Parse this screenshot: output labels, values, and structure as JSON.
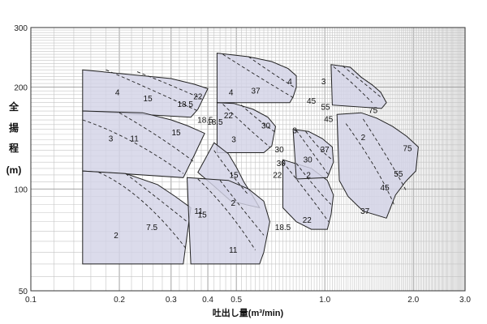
{
  "chart_data": {
    "type": "area",
    "title": "",
    "xlabel": "吐出し量(m³/min)",
    "ylabel_chars": [
      "全",
      "揚",
      "程",
      "(m)"
    ],
    "x_scale": "log",
    "y_scale": "log",
    "xlim": [
      0.1,
      3.0
    ],
    "ylim": [
      50,
      300
    ],
    "x_ticks": [
      {
        "value": 0.1,
        "label": "0.1"
      },
      {
        "value": 0.2,
        "label": "0.2"
      },
      {
        "value": 0.3,
        "label": "0.3"
      },
      {
        "value": 0.4,
        "label": "0.4"
      },
      {
        "value": 0.5,
        "label": "0.5"
      },
      {
        "value": 1.0,
        "label": "1.0"
      },
      {
        "value": 2.0,
        "label": "2.0"
      },
      {
        "value": 3.0,
        "label": "3.0"
      }
    ],
    "y_ticks": [
      {
        "value": 50,
        "label": "50"
      },
      {
        "value": 100,
        "label": "100"
      },
      {
        "value": 200,
        "label": "200"
      },
      {
        "value": 300,
        "label": "300"
      }
    ],
    "grid": true,
    "regions": [
      {
        "points": [
          [
            0.15,
            225
          ],
          [
            0.3,
            212
          ],
          [
            0.36,
            204
          ],
          [
            0.4,
            198
          ],
          [
            0.37,
            172
          ],
          [
            0.35,
            163
          ],
          [
            0.15,
            170
          ]
        ],
        "curves": [
          [
            [
              0.18,
              225
            ],
            [
              0.26,
              196
            ],
            [
              0.37,
              170
            ]
          ],
          [
            [
              0.23,
              222
            ],
            [
              0.3,
              203
            ],
            [
              0.38,
              185
            ]
          ]
        ],
        "labels": [
          {
            "text": "4",
            "x": 0.197,
            "y": 193
          },
          {
            "text": "15",
            "x": 0.25,
            "y": 185
          },
          {
            "text": "18.5",
            "x": 0.335,
            "y": 178
          },
          {
            "text": "22",
            "x": 0.37,
            "y": 188
          }
        ]
      },
      {
        "points": [
          [
            0.15,
            170
          ],
          [
            0.24,
            168
          ],
          [
            0.3,
            160
          ],
          [
            0.34,
            154
          ],
          [
            0.39,
            146
          ],
          [
            0.36,
            126
          ],
          [
            0.33,
            108
          ],
          [
            0.15,
            113
          ]
        ],
        "curves": [
          [
            [
              0.15,
              160
            ],
            [
              0.22,
              143
            ],
            [
              0.33,
              111
            ]
          ],
          [
            [
              0.2,
              168
            ],
            [
              0.28,
              142
            ],
            [
              0.36,
              120
            ]
          ]
        ],
        "labels": [
          {
            "text": "3",
            "x": 0.187,
            "y": 141
          },
          {
            "text": "11",
            "x": 0.225,
            "y": 141
          },
          {
            "text": "15",
            "x": 0.312,
            "y": 147
          },
          {
            "text": "18.5",
            "x": 0.392,
            "y": 160
          }
        ]
      },
      {
        "points": [
          [
            0.15,
            113
          ],
          [
            0.21,
            111
          ],
          [
            0.27,
            103
          ],
          [
            0.31,
            95
          ],
          [
            0.35,
            88
          ],
          [
            0.34,
            73
          ],
          [
            0.33,
            60
          ],
          [
            0.15,
            60
          ]
        ],
        "curves": [
          [
            [
              0.17,
              112
            ],
            [
              0.24,
              98
            ],
            [
              0.34,
              66
            ]
          ],
          [
            [
              0.21,
              111
            ],
            [
              0.27,
              94
            ],
            [
              0.34,
              80
            ]
          ]
        ],
        "labels": [
          {
            "text": "2",
            "x": 0.195,
            "y": 73
          },
          {
            "text": "7.5",
            "x": 0.258,
            "y": 77
          },
          {
            "text": "11",
            "x": 0.372,
            "y": 86
          }
        ]
      },
      {
        "points": [
          [
            0.43,
            252
          ],
          [
            0.55,
            246
          ],
          [
            0.66,
            238
          ],
          [
            0.75,
            227
          ],
          [
            0.8,
            216
          ],
          [
            0.8,
            200
          ],
          [
            0.78,
            187
          ],
          [
            0.76,
            180
          ],
          [
            0.43,
            180
          ]
        ],
        "curves": [
          [
            [
              0.45,
              250
            ],
            [
              0.59,
              215
            ],
            [
              0.79,
              185
            ]
          ],
          [
            [
              0.55,
              246
            ],
            [
              0.66,
              220
            ],
            [
              0.8,
              198
            ]
          ]
        ],
        "labels": [
          {
            "text": "4",
            "x": 0.48,
            "y": 193
          },
          {
            "text": "37",
            "x": 0.582,
            "y": 195
          },
          {
            "text": "4",
            "x": 0.76,
            "y": 208
          }
        ]
      },
      {
        "points": [
          [
            0.43,
            180
          ],
          [
            0.49,
            179
          ],
          [
            0.57,
            172
          ],
          [
            0.64,
            163
          ],
          [
            0.68,
            153
          ],
          [
            0.66,
            134
          ],
          [
            0.62,
            128
          ],
          [
            0.43,
            128
          ]
        ],
        "curves": [
          [
            [
              0.45,
              178
            ],
            [
              0.55,
              150
            ],
            [
              0.65,
              133
            ]
          ],
          [
            [
              0.52,
              177
            ],
            [
              0.59,
              160
            ],
            [
              0.68,
              147
            ]
          ]
        ],
        "labels": [
          {
            "text": "22",
            "x": 0.47,
            "y": 165
          },
          {
            "text": "30",
            "x": 0.63,
            "y": 154
          },
          {
            "text": "30",
            "x": 0.7,
            "y": 131
          }
        ]
      },
      {
        "points": [
          [
            0.42,
            137
          ],
          [
            0.47,
            127
          ],
          [
            0.5,
            116
          ],
          [
            0.53,
            105
          ],
          [
            0.57,
            95
          ],
          [
            0.6,
            88
          ],
          [
            0.48,
            92
          ],
          [
            0.42,
            102
          ],
          [
            0.37,
            112
          ]
        ],
        "curves": [
          [
            [
              0.42,
              130
            ],
            [
              0.48,
              110
            ],
            [
              0.55,
              96
            ]
          ]
        ],
        "labels": [
          {
            "text": "18.5",
            "x": 0.423,
            "y": 158
          },
          {
            "text": "3",
            "x": 0.49,
            "y": 140
          },
          {
            "text": "15",
            "x": 0.49,
            "y": 110
          }
        ]
      },
      {
        "points": [
          [
            0.34,
            108
          ],
          [
            0.47,
            106
          ],
          [
            0.55,
            100
          ],
          [
            0.62,
            92
          ],
          [
            0.65,
            80
          ],
          [
            0.62,
            65
          ],
          [
            0.6,
            60
          ],
          [
            0.35,
            60
          ]
        ],
        "curves": [
          [
            [
              0.37,
              107
            ],
            [
              0.47,
              88
            ],
            [
              0.58,
              66
            ]
          ],
          [
            [
              0.44,
              106
            ],
            [
              0.52,
              88
            ],
            [
              0.62,
              73
            ]
          ]
        ],
        "labels": [
          {
            "text": "2",
            "x": 0.488,
            "y": 91
          },
          {
            "text": "15",
            "x": 0.383,
            "y": 84
          },
          {
            "text": "11",
            "x": 0.488,
            "y": 66
          }
        ]
      },
      {
        "points": [
          [
            0.72,
            122
          ],
          [
            0.9,
            115
          ],
          [
            1.02,
            106
          ],
          [
            1.07,
            96
          ],
          [
            1.05,
            84
          ],
          [
            1.02,
            76
          ],
          [
            0.9,
            76
          ],
          [
            0.8,
            80
          ],
          [
            0.72,
            88
          ]
        ],
        "curves": [
          [
            [
              0.72,
              120
            ],
            [
              0.87,
              98
            ],
            [
              1.03,
              80
            ]
          ],
          [
            [
              0.8,
              119
            ],
            [
              0.94,
              99
            ],
            [
              1.05,
              90
            ]
          ]
        ],
        "labels": [
          {
            "text": "30",
            "x": 0.71,
            "y": 119
          },
          {
            "text": "22",
            "x": 0.69,
            "y": 110
          },
          {
            "text": "18.5",
            "x": 0.72,
            "y": 77
          },
          {
            "text": "22",
            "x": 0.87,
            "y": 81
          }
        ]
      },
      {
        "points": [
          [
            1.05,
            233
          ],
          [
            1.22,
            229
          ],
          [
            1.33,
            214
          ],
          [
            1.45,
            203
          ],
          [
            1.55,
            193
          ],
          [
            1.62,
            180
          ],
          [
            1.56,
            173
          ],
          [
            1.06,
            177
          ]
        ],
        "curves": [
          [
            [
              1.07,
              230
            ],
            [
              1.25,
              205
            ],
            [
              1.45,
              180
            ]
          ],
          [
            [
              1.15,
              231
            ],
            [
              1.32,
              210
            ],
            [
              1.56,
              186
            ]
          ]
        ],
        "labels": [
          {
            "text": "3",
            "x": 0.99,
            "y": 208
          },
          {
            "text": "45",
            "x": 0.9,
            "y": 182
          },
          {
            "text": "55",
            "x": 1.005,
            "y": 175
          },
          {
            "text": "75",
            "x": 1.46,
            "y": 171
          }
        ]
      },
      {
        "points": [
          [
            1.1,
            166
          ],
          [
            1.33,
            168
          ],
          [
            1.5,
            162
          ],
          [
            1.7,
            153
          ],
          [
            1.9,
            143
          ],
          [
            2.08,
            133
          ],
          [
            2.04,
            113
          ],
          [
            1.88,
            105
          ],
          [
            1.74,
            96
          ],
          [
            1.62,
            82
          ],
          [
            1.35,
            86
          ],
          [
            1.2,
            95
          ],
          [
            1.12,
            106
          ]
        ],
        "curves": [
          [
            [
              1.18,
              156
            ],
            [
              1.52,
              115
            ],
            [
              1.72,
              90
            ]
          ],
          [
            [
              1.35,
              161
            ],
            [
              1.7,
              118
            ],
            [
              1.9,
              98
            ]
          ]
        ],
        "labels": [
          {
            "text": "45",
            "x": 1.03,
            "y": 161
          },
          {
            "text": "2",
            "x": 1.35,
            "y": 142
          },
          {
            "text": "75",
            "x": 1.91,
            "y": 132
          },
          {
            "text": "55",
            "x": 1.78,
            "y": 111
          },
          {
            "text": "45",
            "x": 1.6,
            "y": 101
          },
          {
            "text": "37",
            "x": 1.37,
            "y": 86
          }
        ]
      },
      {
        "points": [
          [
            0.78,
            150
          ],
          [
            0.88,
            148
          ],
          [
            0.98,
            141
          ],
          [
            1.06,
            133
          ],
          [
            1.07,
            120
          ],
          [
            1.02,
            108
          ],
          [
            0.8,
            107
          ]
        ],
        "curves": [
          [
            [
              0.8,
              149
            ],
            [
              0.92,
              126
            ],
            [
              1.03,
              110
            ]
          ],
          [
            [
              0.86,
              148
            ],
            [
              0.97,
              129
            ],
            [
              1.06,
              122
            ]
          ]
        ],
        "labels": [
          {
            "text": "3",
            "x": 0.79,
            "y": 149
          },
          {
            "text": "37",
            "x": 1.0,
            "y": 131
          },
          {
            "text": "30",
            "x": 0.875,
            "y": 122
          },
          {
            "text": "2",
            "x": 0.88,
            "y": 110
          }
        ]
      }
    ]
  }
}
